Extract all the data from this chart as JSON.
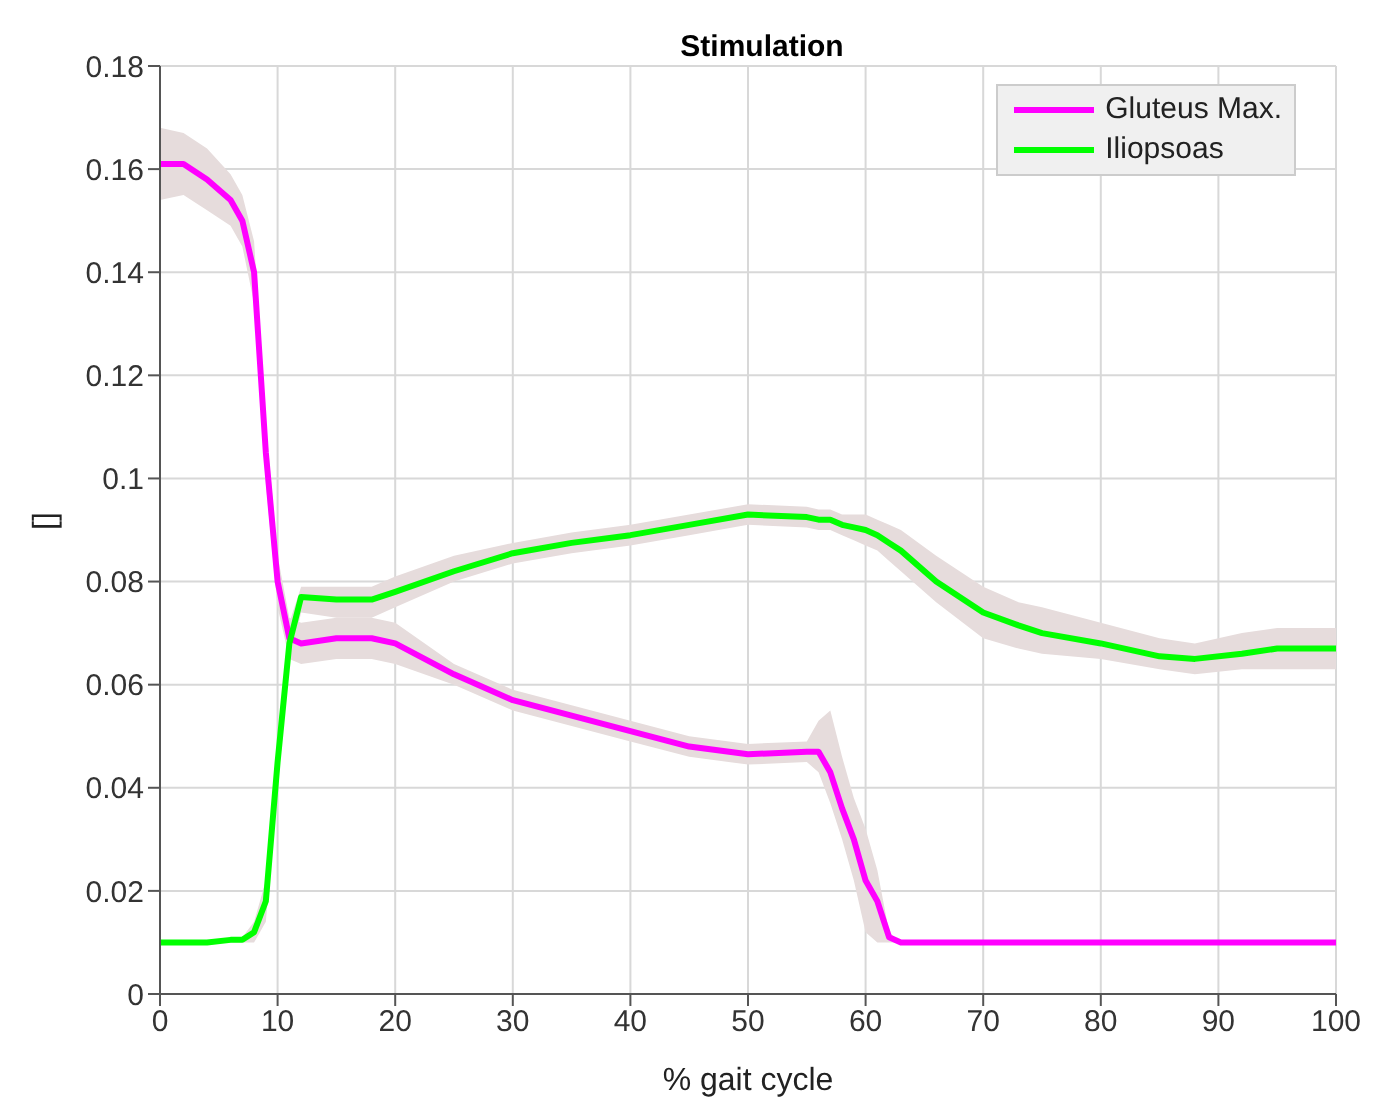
{
  "chart_data": {
    "type": "line",
    "title": "Stimulation",
    "xlabel": "% gait cycle",
    "ylabel": "[]",
    "x": [
      0,
      2,
      4,
      6,
      7,
      8,
      9,
      10,
      11,
      12,
      15,
      18,
      20,
      25,
      30,
      35,
      40,
      45,
      50,
      55,
      56,
      57,
      58,
      59,
      60,
      61,
      62,
      63,
      66,
      70,
      73,
      75,
      80,
      85,
      88,
      92,
      95,
      100
    ],
    "series": [
      {
        "name": "Gluteus Max.",
        "color": "#ff00ff",
        "values": [
          0.161,
          0.161,
          0.158,
          0.154,
          0.15,
          0.14,
          0.105,
          0.08,
          0.069,
          0.068,
          0.069,
          0.069,
          0.068,
          0.062,
          0.057,
          0.054,
          0.051,
          0.048,
          0.0465,
          0.047,
          0.047,
          0.043,
          0.036,
          0.03,
          0.022,
          0.018,
          0.011,
          0.01,
          0.01,
          0.01,
          0.01,
          0.01,
          0.01,
          0.01,
          0.01,
          0.01,
          0.01,
          0.01
        ],
        "lower": [
          0.154,
          0.155,
          0.152,
          0.149,
          0.145,
          0.134,
          0.099,
          0.075,
          0.065,
          0.064,
          0.065,
          0.065,
          0.064,
          0.06,
          0.055,
          0.052,
          0.049,
          0.046,
          0.0445,
          0.045,
          0.043,
          0.037,
          0.03,
          0.022,
          0.012,
          0.01,
          0.01,
          0.01,
          0.01,
          0.01,
          0.01,
          0.01,
          0.01,
          0.01,
          0.01,
          0.01,
          0.01,
          0.01
        ],
        "upper": [
          0.168,
          0.167,
          0.164,
          0.159,
          0.155,
          0.146,
          0.111,
          0.085,
          0.073,
          0.072,
          0.073,
          0.073,
          0.072,
          0.064,
          0.059,
          0.056,
          0.053,
          0.05,
          0.0485,
          0.049,
          0.053,
          0.055,
          0.046,
          0.038,
          0.032,
          0.024,
          0.012,
          0.01,
          0.01,
          0.01,
          0.01,
          0.01,
          0.01,
          0.01,
          0.01,
          0.01,
          0.01,
          0.01
        ]
      },
      {
        "name": "Iliopsoas",
        "color": "#00ff00",
        "values": [
          0.01,
          0.01,
          0.01,
          0.0105,
          0.0105,
          0.012,
          0.018,
          0.045,
          0.068,
          0.077,
          0.0765,
          0.0765,
          0.078,
          0.082,
          0.0855,
          0.0875,
          0.089,
          0.091,
          0.093,
          0.0925,
          0.092,
          0.092,
          0.091,
          0.0905,
          0.09,
          0.089,
          0.0875,
          0.086,
          0.08,
          0.074,
          0.0715,
          0.07,
          0.068,
          0.0655,
          0.065,
          0.066,
          0.067,
          0.067
        ],
        "lower": [
          0.01,
          0.01,
          0.01,
          0.01,
          0.01,
          0.01,
          0.014,
          0.04,
          0.064,
          0.074,
          0.073,
          0.073,
          0.075,
          0.08,
          0.0835,
          0.0855,
          0.087,
          0.089,
          0.091,
          0.0905,
          0.09,
          0.09,
          0.089,
          0.088,
          0.087,
          0.086,
          0.084,
          0.082,
          0.076,
          0.069,
          0.067,
          0.066,
          0.065,
          0.063,
          0.062,
          0.063,
          0.063,
          0.063
        ],
        "upper": [
          0.01,
          0.01,
          0.01,
          0.011,
          0.011,
          0.014,
          0.022,
          0.05,
          0.072,
          0.079,
          0.079,
          0.079,
          0.081,
          0.085,
          0.0875,
          0.0895,
          0.091,
          0.093,
          0.095,
          0.0945,
          0.094,
          0.094,
          0.093,
          0.093,
          0.093,
          0.092,
          0.091,
          0.09,
          0.085,
          0.079,
          0.076,
          0.075,
          0.072,
          0.069,
          0.068,
          0.07,
          0.071,
          0.071
        ]
      }
    ],
    "xlim": [
      0,
      100
    ],
    "xticks": [
      0,
      10,
      20,
      30,
      40,
      50,
      60,
      70,
      80,
      90,
      100
    ],
    "ylim": [
      0,
      0.18
    ],
    "yticks": [
      0,
      0.02,
      0.04,
      0.06,
      0.08,
      0.1,
      0.12,
      0.14,
      0.16,
      0.18
    ],
    "grid": true,
    "legend": "top right",
    "marker": "none",
    "line_style": "solid"
  }
}
